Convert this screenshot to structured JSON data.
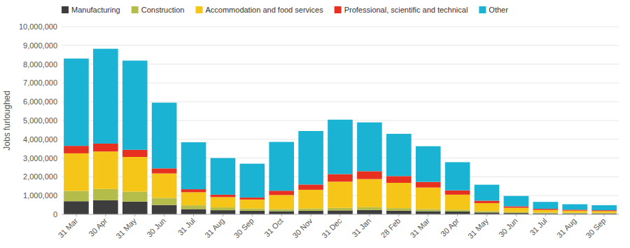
{
  "chart_data": {
    "type": "bar",
    "stacked": true,
    "grid": true,
    "legend": "top",
    "ylabel": "Jobs furloughed",
    "categories": [
      "31 Mar",
      "30 Apr",
      "31 May",
      "30 Jun",
      "31 Jul",
      "31 Aug",
      "30 Sep",
      "31 Oct",
      "30 Nov",
      "31 Dec",
      "31 Jan",
      "28 Feb",
      "31 Mar",
      "30 Apr",
      "31 May",
      "30 Jun",
      "31 Jul",
      "31 Aug",
      "30 Sep"
    ],
    "series": [
      {
        "name": "Manufacturing",
        "color": "#3d3d3d",
        "values": [
          700000,
          750000,
          680000,
          500000,
          280000,
          220000,
          190000,
          170000,
          190000,
          210000,
          230000,
          200000,
          170000,
          150000,
          100000,
          70000,
          55000,
          50000,
          45000
        ]
      },
      {
        "name": "Construction",
        "color": "#b5bd4a",
        "values": [
          550000,
          600000,
          530000,
          380000,
          200000,
          150000,
          120000,
          110000,
          120000,
          135000,
          150000,
          130000,
          110000,
          100000,
          70000,
          50000,
          40000,
          38000,
          35000
        ]
      },
      {
        "name": "Accommodation and food services",
        "color": "#f5c518",
        "values": [
          2000000,
          2000000,
          1850000,
          1300000,
          700000,
          550000,
          480000,
          750000,
          1000000,
          1400000,
          1500000,
          1350000,
          1150000,
          800000,
          430000,
          230000,
          140000,
          110000,
          95000
        ]
      },
      {
        "name": "Professional, scientific and technical",
        "color": "#e83020",
        "values": [
          400000,
          420000,
          380000,
          270000,
          160000,
          130000,
          110000,
          230000,
          280000,
          400000,
          420000,
          360000,
          300000,
          230000,
          130000,
          80000,
          60000,
          52000,
          45000
        ]
      },
      {
        "name": "Other",
        "color": "#1ab3d4",
        "values": [
          4650000,
          5050000,
          4750000,
          3500000,
          2500000,
          1950000,
          1800000,
          2600000,
          2850000,
          2900000,
          2600000,
          2250000,
          1900000,
          1500000,
          850000,
          550000,
          370000,
          290000,
          270000
        ]
      }
    ],
    "ylim": [
      0,
      10000000
    ],
    "yticks": [
      0,
      {
        "value": 1000000,
        "label": "1,000,000"
      },
      {
        "value": 2000000,
        "label": "2,000,000"
      },
      {
        "value": 3000000,
        "label": "3,000,000"
      },
      {
        "value": 4000000,
        "label": "4,000,000"
      },
      {
        "value": 5000000,
        "label": "5,000,000"
      },
      {
        "value": 6000000,
        "label": "6,000,000"
      },
      {
        "value": 7000000,
        "label": "7,000,000"
      },
      {
        "value": 8000000,
        "label": "8,000,000"
      },
      {
        "value": 9000000,
        "label": "9,000,000"
      },
      {
        "value": 10000000,
        "label": "10,000,000"
      }
    ]
  }
}
